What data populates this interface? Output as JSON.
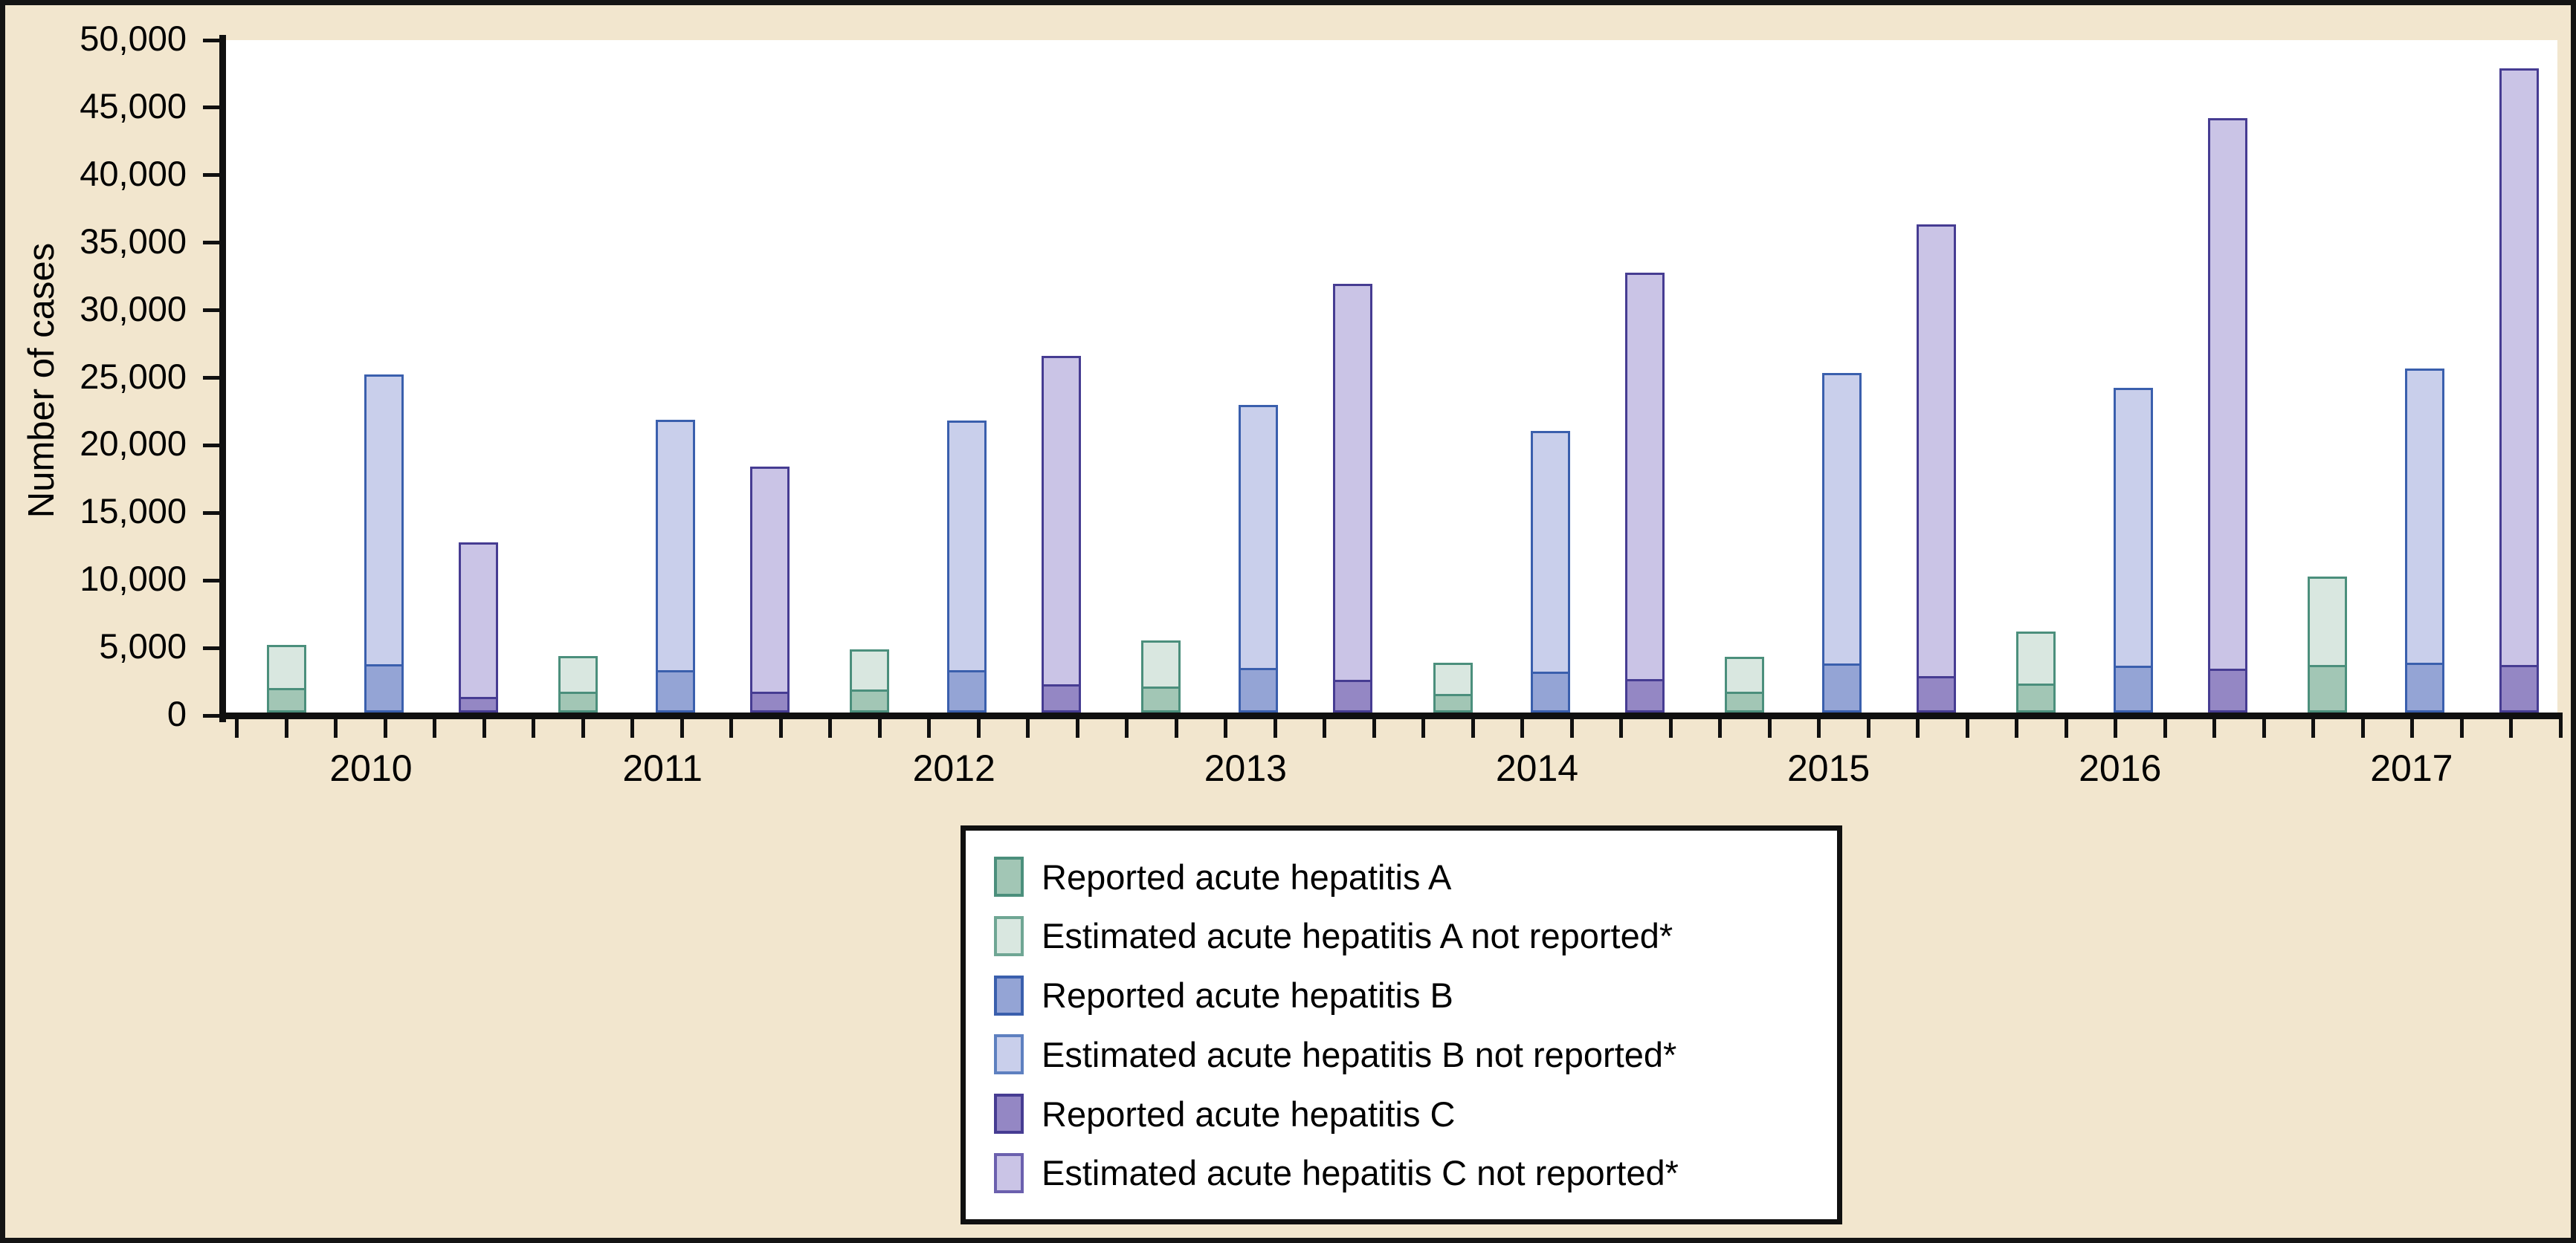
{
  "figure": {
    "background_color": "#f2e6ce",
    "frame_color": "#141414",
    "plot_background": "#ffffff",
    "axis_color": "#101010"
  },
  "chart_data": {
    "type": "bar",
    "stacked": true,
    "grouped_by_year": true,
    "title": "",
    "xlabel": "",
    "ylabel": "Number of cases",
    "ylim": [
      0,
      50000
    ],
    "y_tick_step": 5000,
    "y_tick_labels": [
      "0",
      "5,000",
      "10,000",
      "15,000",
      "20,000",
      "25,000",
      "30,000",
      "35,000",
      "40,000",
      "45,000",
      "50,000"
    ],
    "categories": [
      "2010",
      "2011",
      "2012",
      "2013",
      "2014",
      "2015",
      "2016",
      "2017"
    ],
    "grid": false,
    "legend_position": "below-chart",
    "series": [
      {
        "name": "Reported acute hepatitis A",
        "stack": "hepatitis-A",
        "role": "reported",
        "fill": "#a2c6b5",
        "border": "#4b8f7c",
        "values": [
          1670,
          1398,
          1562,
          1781,
          1239,
          1390,
          2007,
          3366
        ]
      },
      {
        "name": "Estimated acute hepatitis A not reported*",
        "stack": "hepatitis-A",
        "role": "estimated-not-reported",
        "fill": "#d9e7e0",
        "border": "#4b8f7c",
        "values": [
          3340,
          2796,
          3124,
          3562,
          2478,
          2780,
          4014,
          6732
        ]
      },
      {
        "name": "Reported acute hepatitis B",
        "stack": "hepatitis-B",
        "role": "reported",
        "fill": "#94a4d5",
        "border": "#3a5fad",
        "values": [
          3350,
          2903,
          2895,
          3050,
          2791,
          3370,
          3218,
          3407
        ]
      },
      {
        "name": "Estimated acute hepatitis B not reported*",
        "stack": "hepatitis-B",
        "role": "estimated-not-reported",
        "fill": "#c9cfeb",
        "border": "#3a5fad",
        "values": [
          21775,
          18870,
          18818,
          19825,
          18142,
          21905,
          20917,
          22146
        ]
      },
      {
        "name": "Reported acute hepatitis C",
        "stack": "hepatitis-C",
        "role": "reported",
        "fill": "#9487c4",
        "border": "#463c92",
        "values": [
          850,
          1229,
          1778,
          2138,
          2194,
          2436,
          2967,
          3216
        ]
      },
      {
        "name": "Estimated acute hepatitis C not reported*",
        "stack": "hepatitis-C",
        "role": "estimated-not-reported",
        "fill": "#cac4e6",
        "border": "#463c92",
        "values": [
          11815,
          17083,
          24714,
          29718,
          30497,
          33860,
          41241,
          44702
        ]
      }
    ]
  },
  "legend": {
    "items": [
      {
        "label": "Reported acute hepatitis A",
        "fill": "#a2c6b5",
        "border": "#4b8f7c"
      },
      {
        "label": "Estimated acute hepatitis A not reported*",
        "fill": "#d9e7e0",
        "border": "#6fa694"
      },
      {
        "label": "Reported acute hepatitis B",
        "fill": "#94a4d5",
        "border": "#3a5fad"
      },
      {
        "label": "Estimated acute hepatitis B not reported*",
        "fill": "#c9cfeb",
        "border": "#5e80c0"
      },
      {
        "label": "Reported acute hepatitis C",
        "fill": "#9487c4",
        "border": "#463c92"
      },
      {
        "label": "Estimated acute hepatitis C not reported*",
        "fill": "#cac4e6",
        "border": "#6b60ae"
      }
    ]
  }
}
